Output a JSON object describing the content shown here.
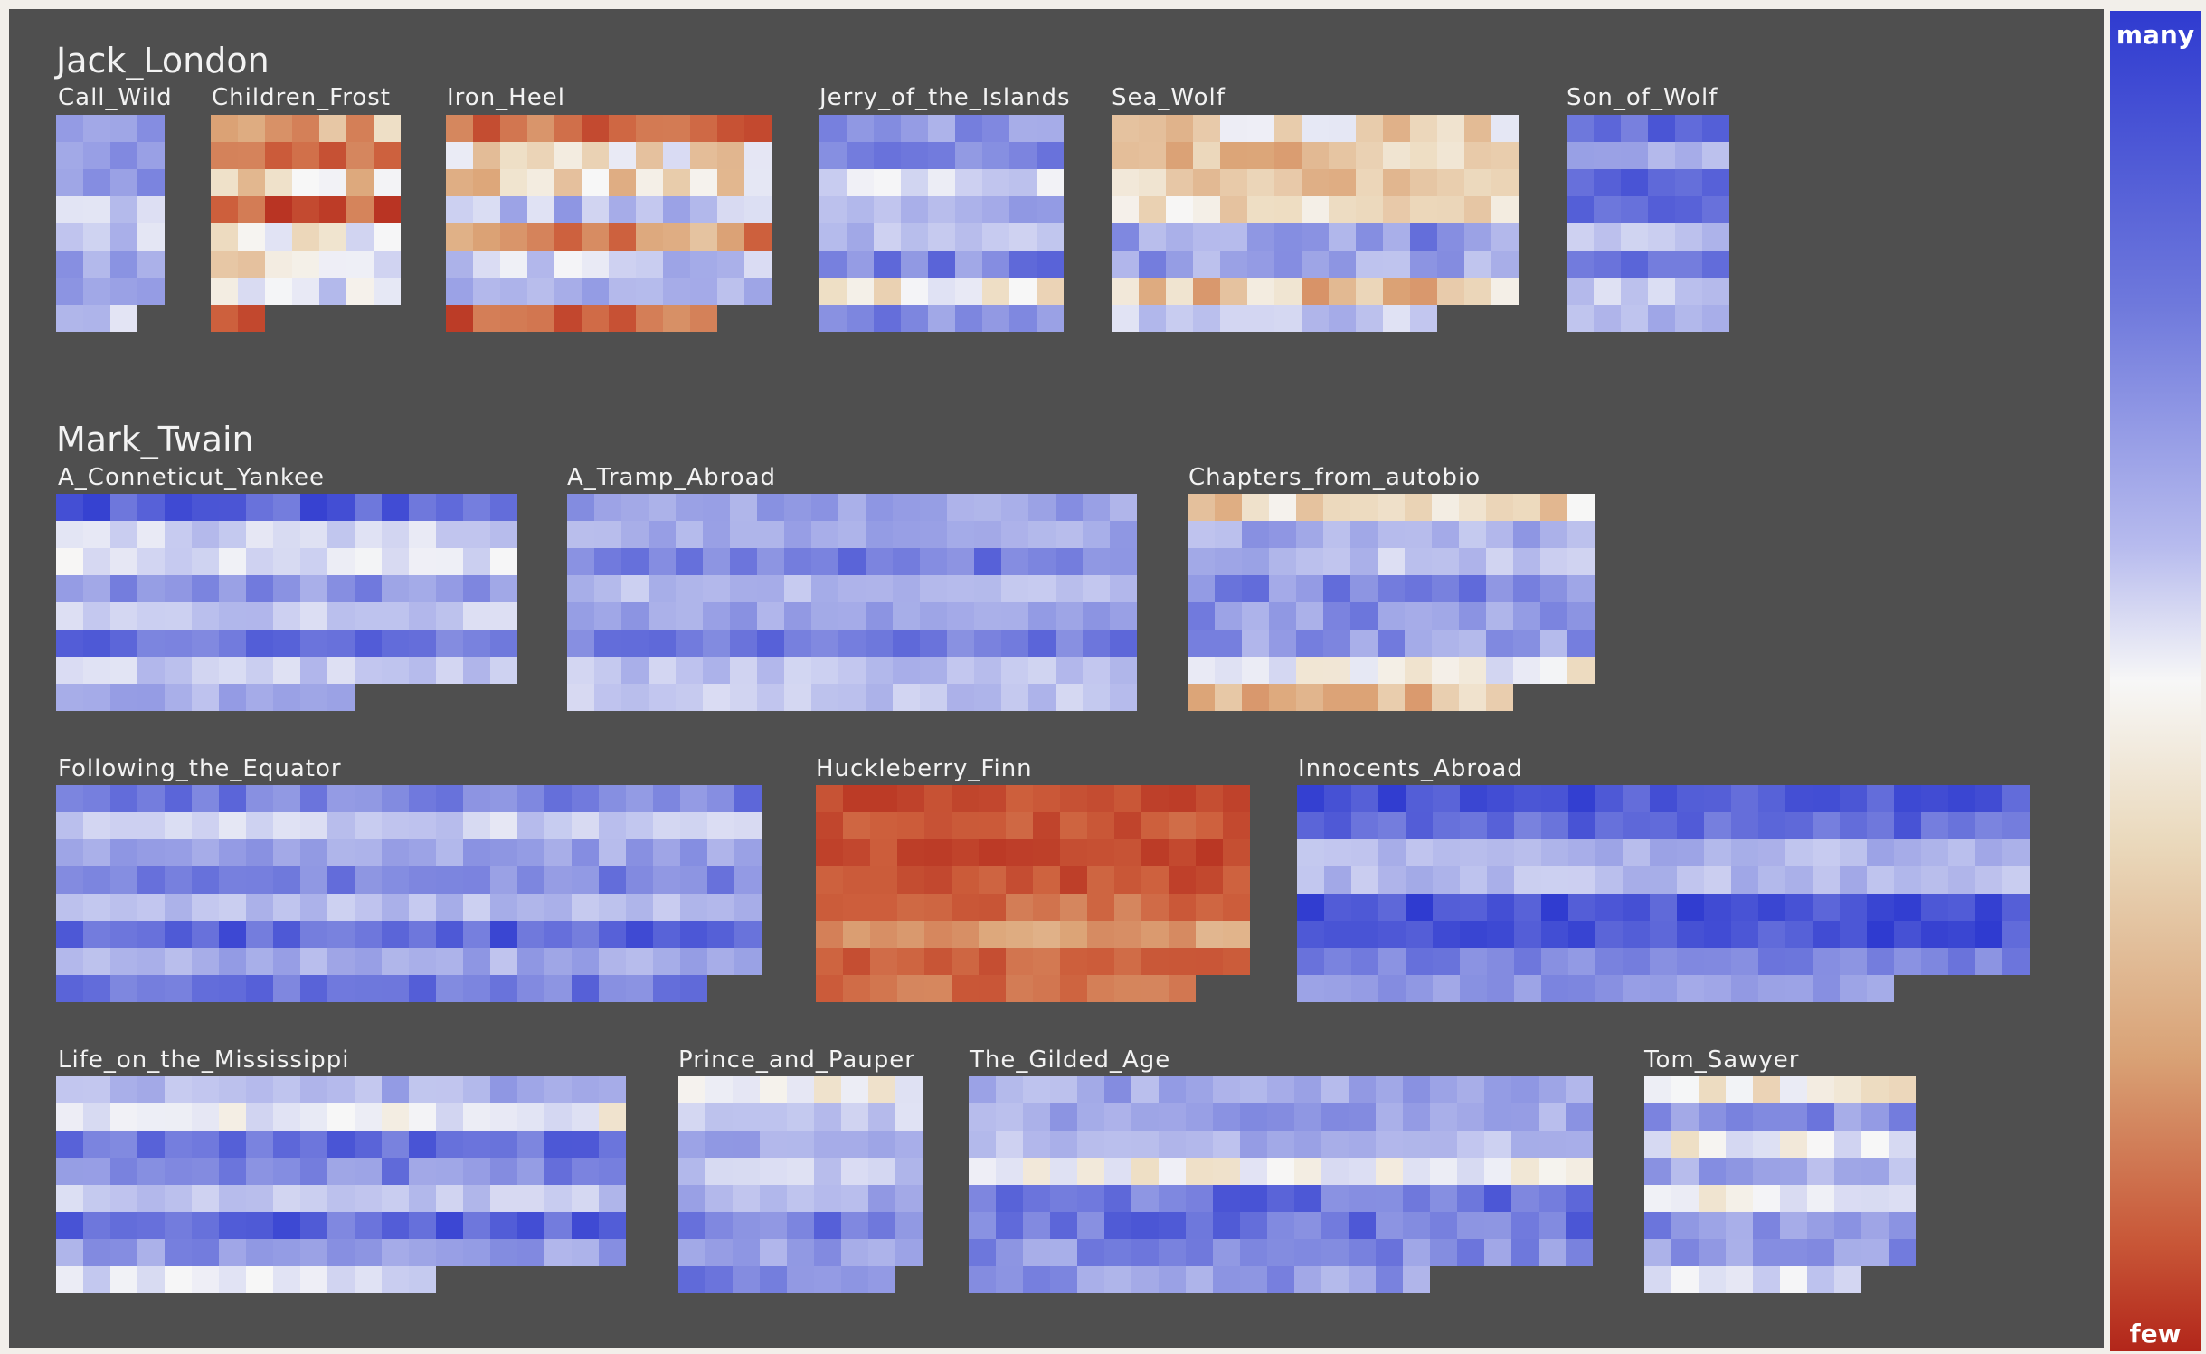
{
  "legend": {
    "high_label": "many",
    "low_label": "few"
  },
  "colors": {
    "background": "#4f4f4f",
    "many": "#2f3bd0",
    "mid": "#f7f7f7",
    "few": "#b2261a"
  },
  "chart_data": {
    "type": "heatmap",
    "scale": {
      "min_label": "few",
      "max_label": "many"
    },
    "authors": [
      {
        "name": "Jack_London",
        "books": [
          {
            "title": "Call_Wild",
            "mean": 0.65,
            "vary": 0.22
          },
          {
            "title": "Children_Frost",
            "mean": 0.35,
            "vary": 0.3
          },
          {
            "title": "Iron_Heel",
            "mean": 0.48,
            "vary": 0.3
          },
          {
            "title": "Jerry_of_the_Islands",
            "mean": 0.7,
            "vary": 0.22
          },
          {
            "title": "Sea_Wolf",
            "mean": 0.6,
            "vary": 0.26
          },
          {
            "title": "Son_of_Wolf",
            "mean": 0.76,
            "vary": 0.18
          }
        ]
      },
      {
        "name": "Mark_Twain",
        "books": [
          {
            "title": "A_Conneticut_Yankee",
            "mean": 0.75,
            "vary": 0.18
          },
          {
            "title": "A_Tramp_Abroad",
            "mean": 0.74,
            "vary": 0.16
          },
          {
            "title": "Chapters_from_autobio",
            "mean": 0.6,
            "vary": 0.22
          },
          {
            "title": "Following_the_Equator",
            "mean": 0.76,
            "vary": 0.18
          },
          {
            "title": "Huckleberry_Finn",
            "mean": 0.18,
            "vary": 0.16
          },
          {
            "title": "Innocents_Abroad",
            "mean": 0.82,
            "vary": 0.15
          },
          {
            "title": "Life_on_the_Mississippi",
            "mean": 0.72,
            "vary": 0.2
          },
          {
            "title": "Prince_and_Pauper",
            "mean": 0.68,
            "vary": 0.18
          },
          {
            "title": "The_Gilded_Age",
            "mean": 0.68,
            "vary": 0.2
          },
          {
            "title": "Tom_Sawyer",
            "mean": 0.6,
            "vary": 0.22
          }
        ]
      }
    ]
  }
}
